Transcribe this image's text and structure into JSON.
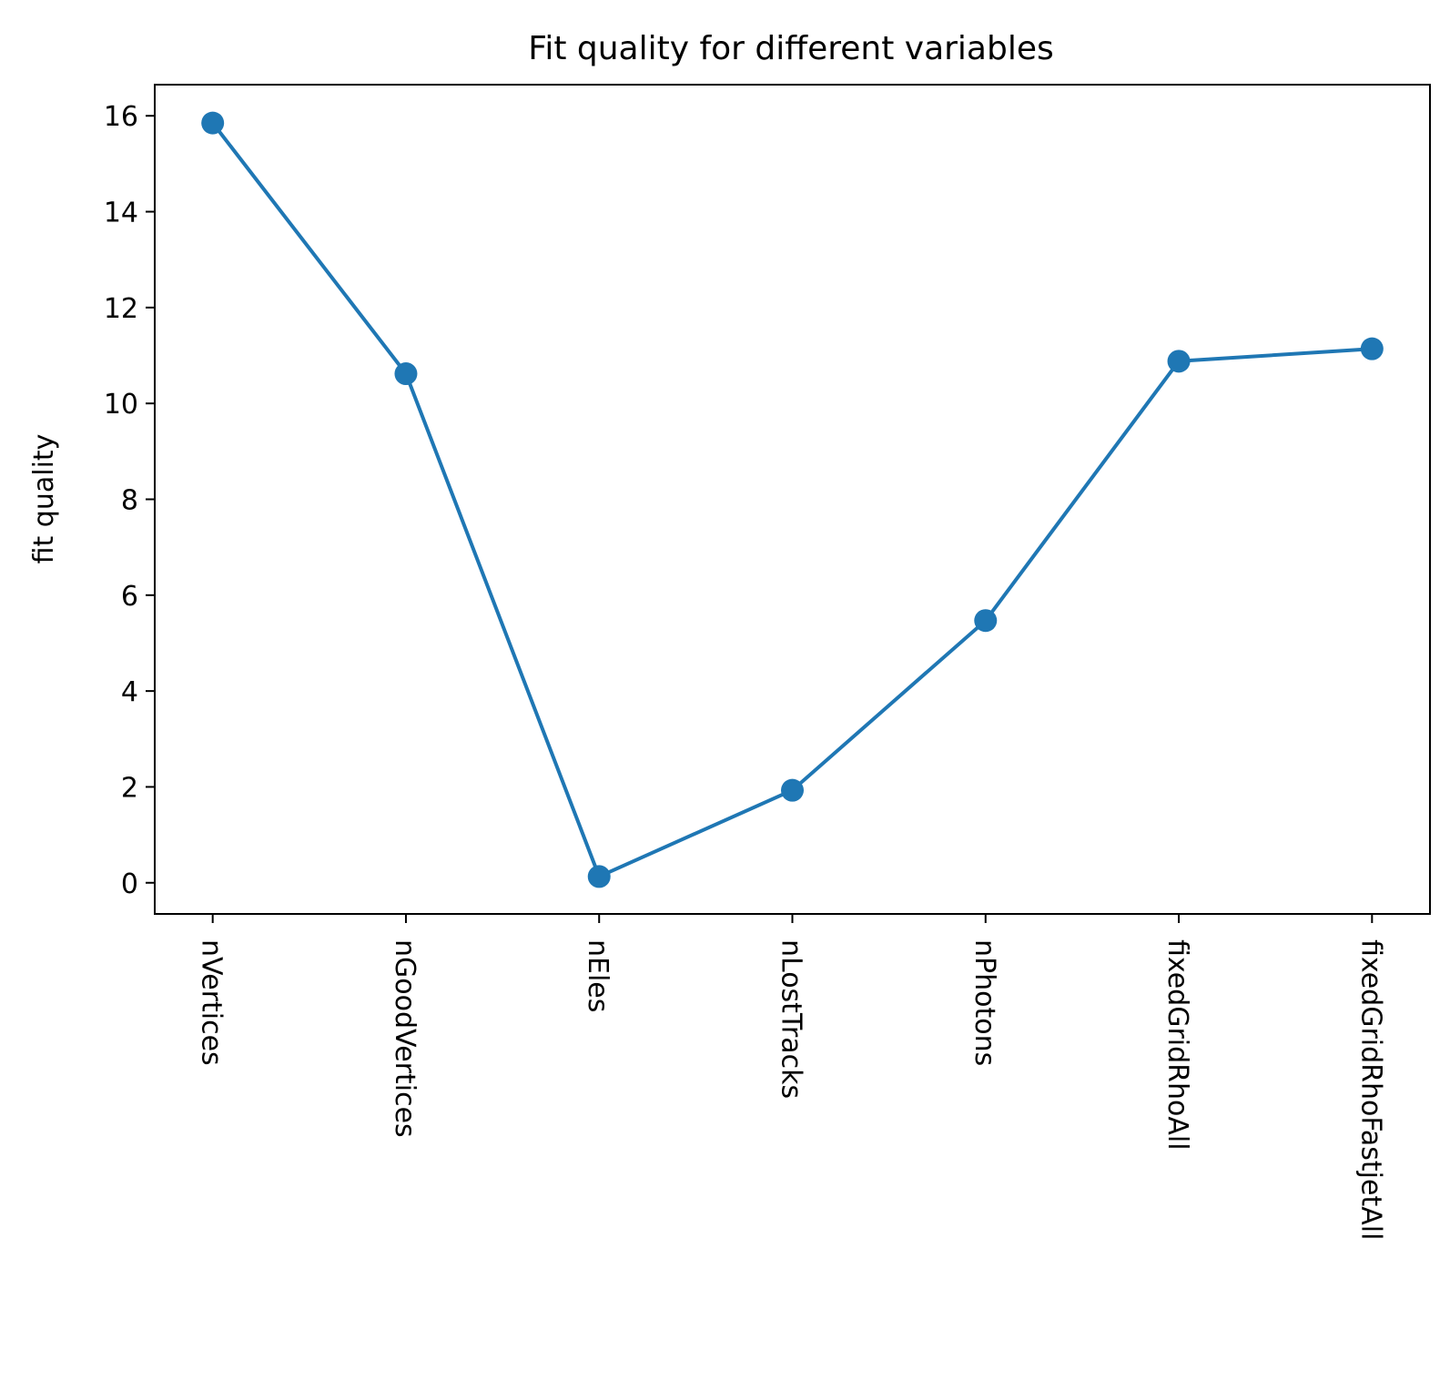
{
  "chart_data": {
    "type": "line",
    "title": "Fit quality for different variables",
    "xlabel": "",
    "ylabel": "fit quality",
    "categories": [
      "nVertices",
      "nGoodVertices",
      "nEles",
      "nLostTracks",
      "nPhotons",
      "fixedGridRhoAll",
      "fixedGridRhoFastjetAll"
    ],
    "series": [
      {
        "values": [
          15.85,
          10.62,
          0.13,
          1.93,
          5.47,
          10.88,
          11.14
        ],
        "color": "#1f77b4",
        "marker": "circle"
      }
    ],
    "ylim": [
      -0.65,
      16.65
    ],
    "yticks": [
      0,
      2,
      4,
      6,
      8,
      10,
      12,
      14,
      16
    ],
    "ytick_labels": [
      "0",
      "2",
      "4",
      "6",
      "8",
      "10",
      "12",
      "14",
      "16"
    ],
    "grid": false,
    "legend": "none"
  }
}
